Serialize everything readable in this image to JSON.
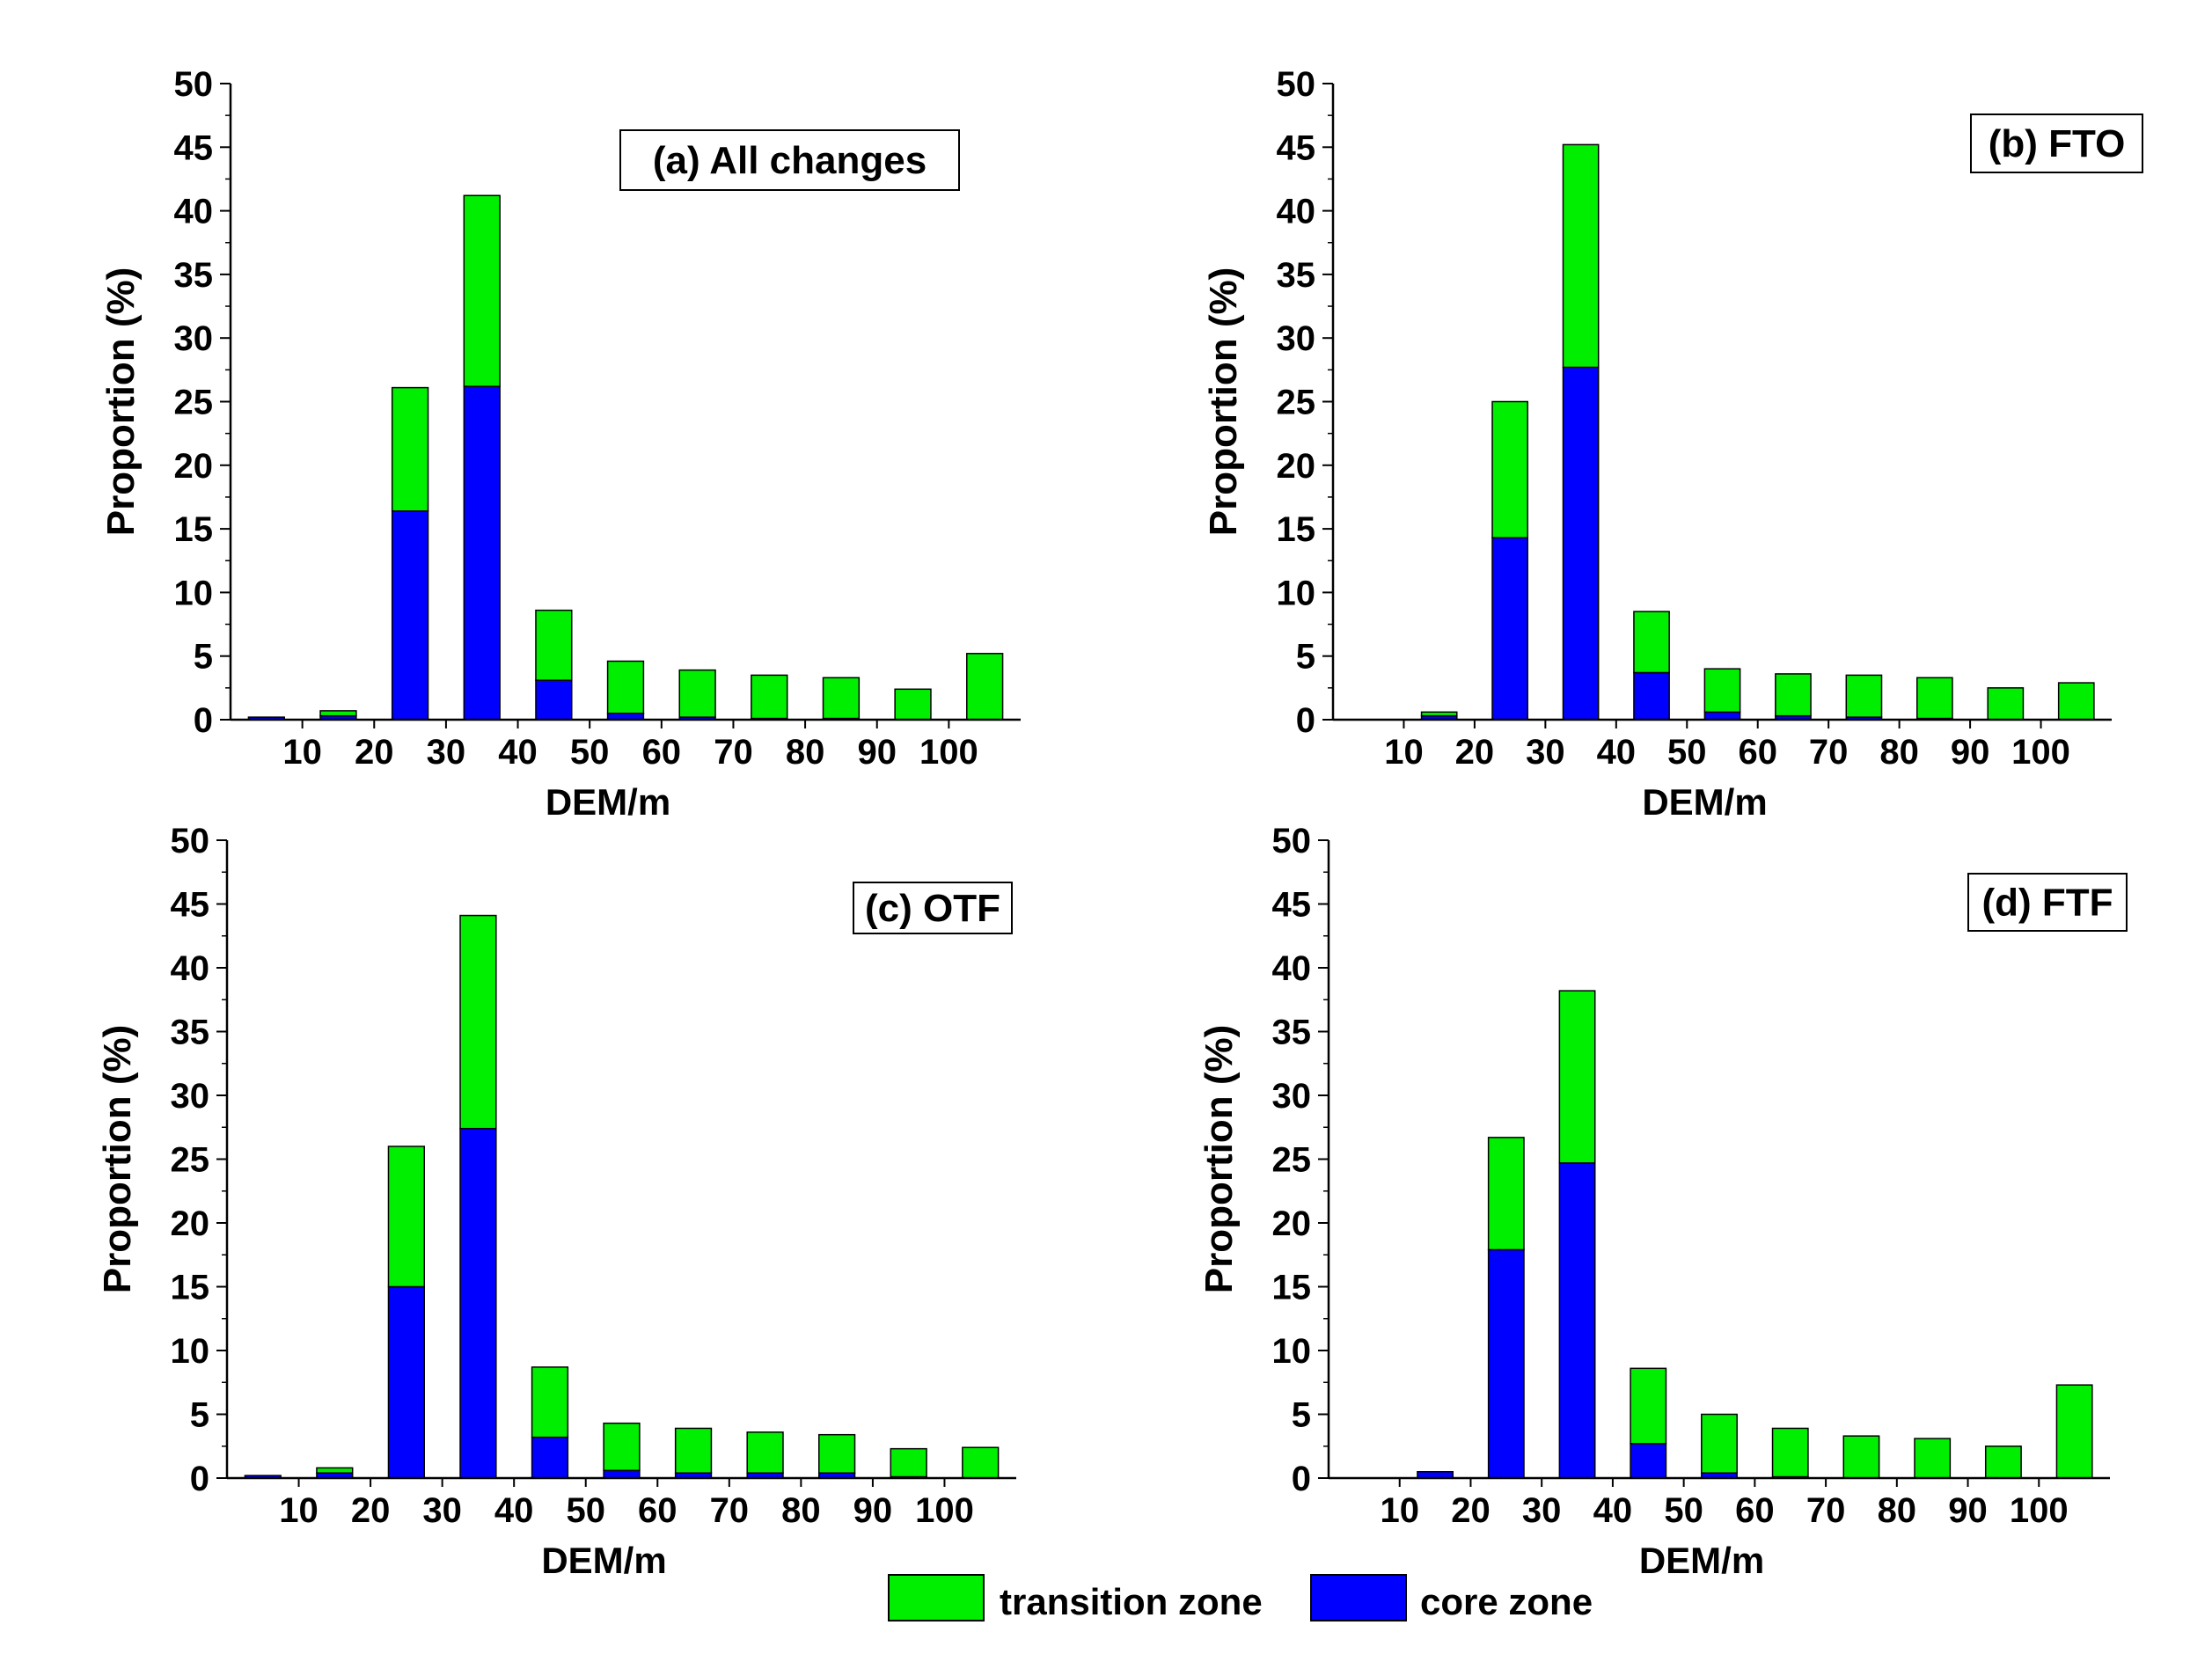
{
  "figure": {
    "legend": [
      {
        "label": "transition zone",
        "color": "#00ee00"
      },
      {
        "label": "core zone",
        "color": "#0000ff"
      }
    ]
  },
  "chart_data": [
    {
      "type": "bar",
      "stacked": true,
      "title": "(a) All changes",
      "xlabel": "DEM/m",
      "ylabel": "Proportion (%)",
      "ylim": [
        0,
        50
      ],
      "yticks": [
        0,
        5,
        10,
        15,
        20,
        25,
        30,
        35,
        40,
        45,
        50
      ],
      "xticks": [
        10,
        20,
        30,
        40,
        50,
        60,
        70,
        80,
        90,
        100
      ],
      "categories": [
        "0-10",
        "10-20",
        "20-30",
        "30-40",
        "40-50",
        "50-60",
        "60-70",
        "70-80",
        "80-90",
        "90-100",
        ">100"
      ],
      "series": [
        {
          "name": "core zone",
          "values": [
            0.2,
            0.3,
            16.4,
            26.2,
            3.1,
            0.5,
            0.2,
            0.1,
            0.1,
            0,
            0
          ]
        },
        {
          "name": "transition zone",
          "values": [
            0,
            0.4,
            9.7,
            15.0,
            5.5,
            4.1,
            3.7,
            3.4,
            3.2,
            2.4,
            5.2
          ]
        }
      ]
    },
    {
      "type": "bar",
      "stacked": true,
      "title": "(b) FTO",
      "xlabel": "DEM/m",
      "ylabel": "Proportion (%)",
      "ylim": [
        0,
        50
      ],
      "yticks": [
        0,
        5,
        10,
        15,
        20,
        25,
        30,
        35,
        40,
        45,
        50
      ],
      "xticks": [
        10,
        20,
        30,
        40,
        50,
        60,
        70,
        80,
        90,
        100
      ],
      "categories": [
        "0-10",
        "10-20",
        "20-30",
        "30-40",
        "40-50",
        "50-60",
        "60-70",
        "70-80",
        "80-90",
        "90-100",
        ">100"
      ],
      "series": [
        {
          "name": "core zone",
          "values": [
            0,
            0.3,
            14.3,
            27.7,
            3.7,
            0.6,
            0.3,
            0.2,
            0.1,
            0,
            0
          ]
        },
        {
          "name": "transition zone",
          "values": [
            0,
            0.3,
            10.7,
            17.5,
            4.8,
            3.4,
            3.3,
            3.3,
            3.2,
            2.5,
            2.9
          ]
        }
      ]
    },
    {
      "type": "bar",
      "stacked": true,
      "title": "(c) OTF",
      "xlabel": "DEM/m",
      "ylabel": "Proportion (%)",
      "ylim": [
        0,
        50
      ],
      "yticks": [
        0,
        5,
        10,
        15,
        20,
        25,
        30,
        35,
        40,
        45,
        50
      ],
      "xticks": [
        10,
        20,
        30,
        40,
        50,
        60,
        70,
        80,
        90,
        100
      ],
      "categories": [
        "0-10",
        "10-20",
        "20-30",
        "30-40",
        "40-50",
        "50-60",
        "60-70",
        "70-80",
        "80-90",
        "90-100",
        ">100"
      ],
      "series": [
        {
          "name": "core zone",
          "values": [
            0.2,
            0.4,
            15.0,
            27.4,
            3.2,
            0.6,
            0.4,
            0.4,
            0.4,
            0.1,
            0
          ]
        },
        {
          "name": "transition zone",
          "values": [
            0,
            0.4,
            11.0,
            16.7,
            5.5,
            3.7,
            3.5,
            3.2,
            3.0,
            2.2,
            2.4
          ]
        }
      ]
    },
    {
      "type": "bar",
      "stacked": true,
      "title": "(d) FTF",
      "xlabel": "DEM/m",
      "ylabel": "Proportion (%)",
      "ylim": [
        0,
        50
      ],
      "yticks": [
        0,
        5,
        10,
        15,
        20,
        25,
        30,
        35,
        40,
        45,
        50
      ],
      "xticks": [
        10,
        20,
        30,
        40,
        50,
        60,
        70,
        80,
        90,
        100
      ],
      "categories": [
        "0-10",
        "10-20",
        "20-30",
        "30-40",
        "40-50",
        "50-60",
        "60-70",
        "70-80",
        "80-90",
        "90-100",
        ">100"
      ],
      "series": [
        {
          "name": "core zone",
          "values": [
            0,
            0.5,
            17.9,
            24.7,
            2.7,
            0.4,
            0.1,
            0,
            0,
            0,
            0
          ]
        },
        {
          "name": "transition zone",
          "values": [
            0,
            0,
            8.8,
            13.5,
            5.9,
            4.6,
            3.8,
            3.3,
            3.1,
            2.5,
            7.3
          ]
        }
      ]
    }
  ]
}
